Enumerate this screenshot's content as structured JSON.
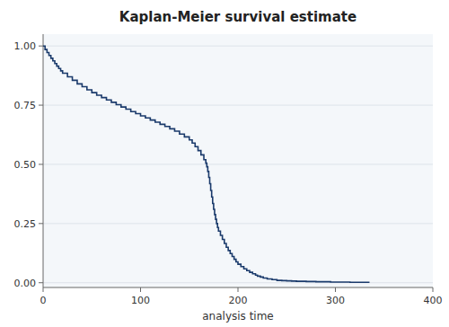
{
  "chart_data": {
    "type": "step",
    "title": "Kaplan-Meier survival estimate",
    "xlabel": "analysis time",
    "color": "#1a3a6b",
    "grid": true,
    "xlim": [
      0,
      400
    ],
    "ylim": [
      -0.02,
      1.05
    ],
    "xticks": [
      0,
      100,
      200,
      300,
      400
    ],
    "yticks": [
      {
        "value": 0.0,
        "label": "0.00"
      },
      0.25,
      {
        "value": 0.5,
        "label": "0.50"
      },
      0.75,
      {
        "value": 1.0,
        "label": "1.00"
      }
    ],
    "x": [
      0,
      2,
      4,
      6,
      8,
      10,
      12,
      14,
      16,
      18,
      20,
      25,
      30,
      35,
      40,
      45,
      50,
      55,
      60,
      65,
      70,
      75,
      80,
      85,
      90,
      95,
      100,
      105,
      110,
      115,
      120,
      125,
      130,
      135,
      140,
      145,
      150,
      153,
      156,
      159,
      162,
      165,
      167,
      168,
      169,
      170,
      171,
      172,
      173,
      174,
      175,
      176,
      177,
      178,
      179,
      180,
      182,
      184,
      186,
      188,
      190,
      192,
      194,
      196,
      198,
      200,
      203,
      206,
      209,
      212,
      215,
      218,
      220,
      223,
      226,
      230,
      235,
      240,
      245,
      250,
      255,
      260,
      265,
      270,
      275,
      280,
      285,
      290,
      295,
      300,
      305,
      310,
      315,
      320,
      325,
      330,
      335
    ],
    "values": [
      1.0,
      0.985,
      0.972,
      0.96,
      0.948,
      0.937,
      0.926,
      0.915,
      0.905,
      0.895,
      0.885,
      0.87,
      0.855,
      0.84,
      0.828,
      0.815,
      0.803,
      0.792,
      0.782,
      0.772,
      0.762,
      0.752,
      0.742,
      0.733,
      0.723,
      0.714,
      0.705,
      0.696,
      0.687,
      0.678,
      0.669,
      0.66,
      0.65,
      0.64,
      0.628,
      0.616,
      0.603,
      0.59,
      0.575,
      0.558,
      0.54,
      0.52,
      0.505,
      0.49,
      0.47,
      0.445,
      0.418,
      0.39,
      0.362,
      0.335,
      0.31,
      0.288,
      0.268,
      0.25,
      0.233,
      0.218,
      0.2,
      0.183,
      0.166,
      0.15,
      0.136,
      0.123,
      0.111,
      0.099,
      0.088,
      0.078,
      0.068,
      0.059,
      0.051,
      0.044,
      0.038,
      0.032,
      0.028,
      0.024,
      0.02,
      0.016,
      0.013,
      0.01,
      0.009,
      0.008,
      0.007,
      0.006,
      0.006,
      0.005,
      0.005,
      0.004,
      0.004,
      0.004,
      0.003,
      0.003,
      0.003,
      0.003,
      0.002,
      0.002,
      0.002,
      0.002,
      0.002
    ]
  }
}
